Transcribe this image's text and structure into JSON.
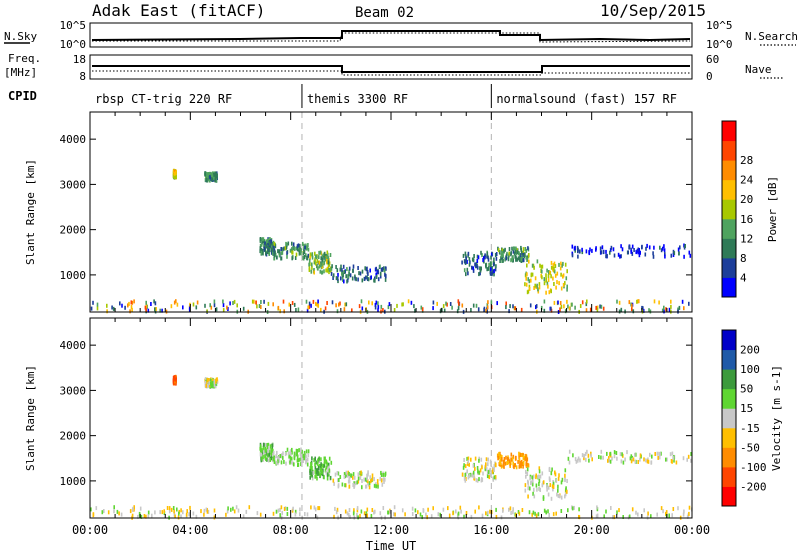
{
  "header": {
    "station": "Adak East (fitACF)",
    "beam": "Beam 02",
    "date": "10/Sep/2015"
  },
  "noise_panel": {
    "left_label": "N.Sky",
    "right_label": "N.Search",
    "left_ticks": [
      "10^5",
      "10^0"
    ],
    "right_ticks": [
      "10^5",
      "10^0"
    ]
  },
  "freq_panel": {
    "left_label_1": "Freq.",
    "left_label_2": "[MHz]",
    "right_label": "Nave",
    "left_ticks": [
      "18",
      "8"
    ],
    "right_ticks": [
      "60",
      "0"
    ]
  },
  "cpid": {
    "label": "CPID",
    "segments": [
      {
        "name": "rbsp CT-trig 220 RF",
        "start_h": 0,
        "end_h": 8.45
      },
      {
        "name": "themis 3300 RF",
        "start_h": 8.45,
        "end_h": 16
      },
      {
        "name": "normalsound (fast) 157 RF",
        "start_h": 16,
        "end_h": 24
      }
    ]
  },
  "colors": {
    "power_scale": [
      "#0000ff",
      "#1c3e9a",
      "#2f7a57",
      "#4fa35f",
      "#a8c800",
      "#ffbf00",
      "#ff8c00",
      "#ff4500",
      "#ff0000"
    ],
    "velocity_scale": [
      "#ff0000",
      "#ff4500",
      "#ff8c00",
      "#ffbf00",
      "#c8c8c8",
      "#5fd632",
      "#3c9a3c",
      "#1f5aa8",
      "#0000c8"
    ],
    "ground_scatter": "#bdbdbd"
  },
  "chart_data": [
    {
      "type": "heatmap",
      "title": "",
      "xlabel": "",
      "ylabel": "Slant Range [km]",
      "xlim": [
        0,
        24
      ],
      "ylim": [
        180,
        4600
      ],
      "xticks": [
        0,
        4,
        8,
        12,
        16,
        20,
        24
      ],
      "yticks": [
        1000,
        2000,
        3000,
        4000
      ],
      "colorbar": {
        "label": "Power [dB]",
        "range": [
          0,
          32
        ],
        "ticks": [
          4,
          8,
          12,
          16,
          20,
          24,
          28
        ]
      },
      "regions": [
        {
          "t": [
            3.3,
            3.4
          ],
          "range": [
            3150,
            3300
          ],
          "value": 20
        },
        {
          "t": [
            4.55,
            5.05
          ],
          "range": [
            3080,
            3250
          ],
          "value": 12
        },
        {
          "t": [
            6.75,
            7.3
          ],
          "range": [
            1450,
            1800
          ],
          "value": 10
        },
        {
          "t": [
            7.3,
            8.7
          ],
          "range": [
            1350,
            1700
          ],
          "value": 12
        },
        {
          "t": [
            8.7,
            9.6
          ],
          "range": [
            1050,
            1500
          ],
          "value": 16
        },
        {
          "t": [
            9.6,
            11.8
          ],
          "range": [
            850,
            1200
          ],
          "value": 8
        },
        {
          "t": [
            14.8,
            16.2
          ],
          "range": [
            1000,
            1500
          ],
          "value": 8
        },
        {
          "t": [
            16.2,
            17.5
          ],
          "range": [
            1300,
            1600
          ],
          "value": 12
        },
        {
          "t": [
            17.3,
            19.0
          ],
          "range": [
            600,
            1300
          ],
          "value": 18
        },
        {
          "t": [
            19.0,
            24.0
          ],
          "range": [
            1400,
            1650
          ],
          "value": 4
        },
        {
          "t": [
            0.0,
            24.0
          ],
          "range": [
            180,
            420
          ],
          "value": 6
        }
      ]
    },
    {
      "type": "heatmap",
      "title": "",
      "xlabel": "Time UT",
      "ylabel": "Slant Range [km]",
      "xlim": [
        0,
        24
      ],
      "ylim": [
        180,
        4600
      ],
      "xticks": [
        0,
        4,
        8,
        12,
        16,
        20,
        24
      ],
      "xticklabels": [
        "00:00",
        "04:00",
        "08:00",
        "12:00",
        "16:00",
        "20:00",
        "00:00"
      ],
      "yticks": [
        1000,
        2000,
        3000,
        4000
      ],
      "colorbar": {
        "label": "Velocity [m s-1]",
        "range": [
          -250,
          250
        ],
        "ticks": [
          200,
          100,
          50,
          15,
          -15,
          -50,
          -100,
          -200
        ]
      },
      "regions": [
        {
          "t": [
            3.3,
            3.4
          ],
          "range": [
            3150,
            3300
          ],
          "value": -120
        },
        {
          "t": [
            4.55,
            5.05
          ],
          "range": [
            3080,
            3250
          ],
          "value": 0
        },
        {
          "t": [
            6.75,
            7.3
          ],
          "range": [
            1450,
            1800
          ],
          "value": 30
        },
        {
          "t": [
            7.3,
            8.7
          ],
          "range": [
            1350,
            1700
          ],
          "value": 20
        },
        {
          "t": [
            8.7,
            9.6
          ],
          "range": [
            1050,
            1500
          ],
          "value": 40
        },
        {
          "t": [
            9.6,
            11.8
          ],
          "range": [
            850,
            1200
          ],
          "value": 0
        },
        {
          "t": [
            14.8,
            16.2
          ],
          "range": [
            1000,
            1500
          ],
          "value": 0
        },
        {
          "t": [
            16.2,
            17.5
          ],
          "range": [
            1300,
            1600
          ],
          "value": -60
        },
        {
          "t": [
            17.3,
            19.0
          ],
          "range": [
            600,
            1300
          ],
          "value": 0
        },
        {
          "t": [
            19.0,
            24.0
          ],
          "range": [
            1400,
            1650
          ],
          "value": 0
        },
        {
          "t": [
            0.0,
            24.0
          ],
          "range": [
            180,
            420
          ],
          "value": -30
        }
      ]
    }
  ]
}
